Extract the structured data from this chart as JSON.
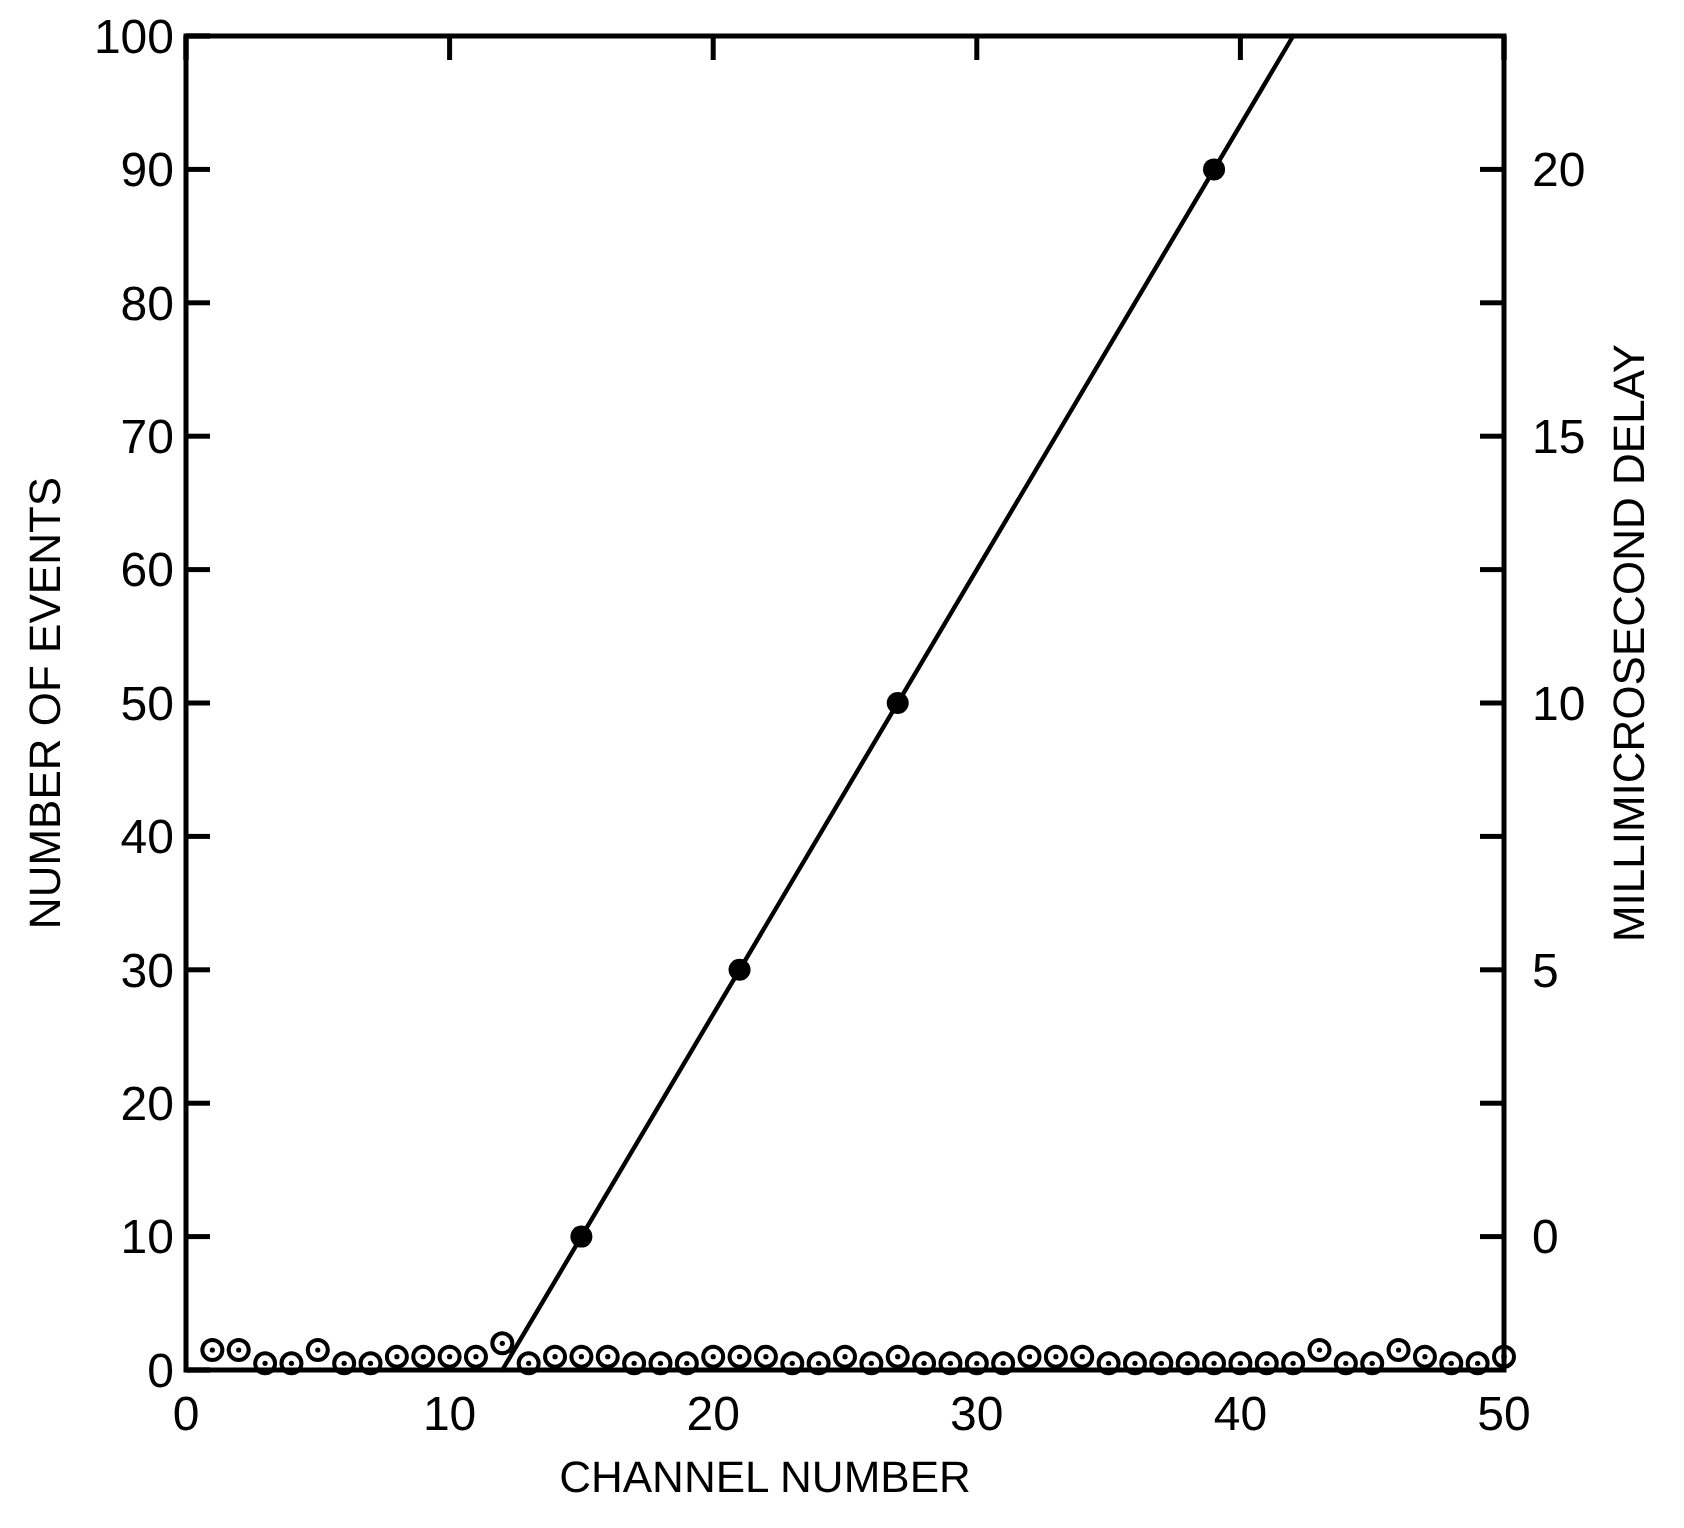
{
  "chart_data": {
    "type": "scatter",
    "xlabel": "CHANNEL NUMBER",
    "ylabel": "NUMBER OF EVENTS",
    "y2label": "MILLIMICROSECOND DELAY",
    "xlim": [
      0,
      50
    ],
    "xticks": [
      0,
      10,
      20,
      30,
      40,
      50
    ],
    "ylim": [
      0,
      100
    ],
    "yticks": [
      0,
      10,
      20,
      30,
      40,
      50,
      60,
      70,
      80,
      90,
      100
    ],
    "y2lim": [
      -2.5,
      22.5
    ],
    "y2ticks": [
      0,
      {
        "value": 2.5,
        "label": null
      },
      5,
      {
        "value": 7.5,
        "label": null
      },
      10,
      {
        "value": 12.5,
        "label": null
      },
      15,
      {
        "value": 17.5,
        "label": null
      },
      20
    ],
    "grid": false,
    "series": [
      {
        "marker": "circle",
        "color": "#000000",
        "x": [
          1,
          2,
          3,
          4,
          5,
          6,
          7,
          8,
          9,
          10,
          11,
          12,
          13,
          14,
          15,
          16,
          17,
          18,
          19,
          20,
          21,
          22,
          23,
          24,
          25,
          26,
          27,
          28,
          29,
          30,
          31,
          32,
          33,
          34,
          35,
          36,
          37,
          38,
          39,
          40,
          41,
          42,
          43,
          44,
          45,
          46,
          47,
          48,
          49,
          50
        ],
        "values": [
          1.5,
          1.5,
          0.5,
          0.5,
          1.5,
          0.5,
          0.5,
          1,
          1,
          1,
          1,
          2,
          0.5,
          1,
          1,
          1,
          0.5,
          0.5,
          0.5,
          1,
          1,
          1,
          0.5,
          0.5,
          1,
          0.5,
          1,
          0.5,
          0.5,
          0.5,
          0.5,
          1,
          1,
          1,
          0.5,
          0.5,
          0.5,
          0.5,
          0.5,
          0.5,
          0.5,
          0.5,
          1.5,
          0.5,
          0.5,
          1.5,
          1,
          0.5,
          0.5,
          1
        ]
      },
      {
        "marker": "circle",
        "color": "#000000",
        "axis": "y2",
        "x": [
          15,
          21,
          27,
          39
        ],
        "values": [
          0,
          5,
          10,
          20
        ]
      },
      {
        "type": "line",
        "line_style": "solid",
        "color": "#000000",
        "axis": "y2",
        "x": [
          12,
          42
        ],
        "values": [
          -2.5,
          22.5
        ]
      }
    ]
  }
}
